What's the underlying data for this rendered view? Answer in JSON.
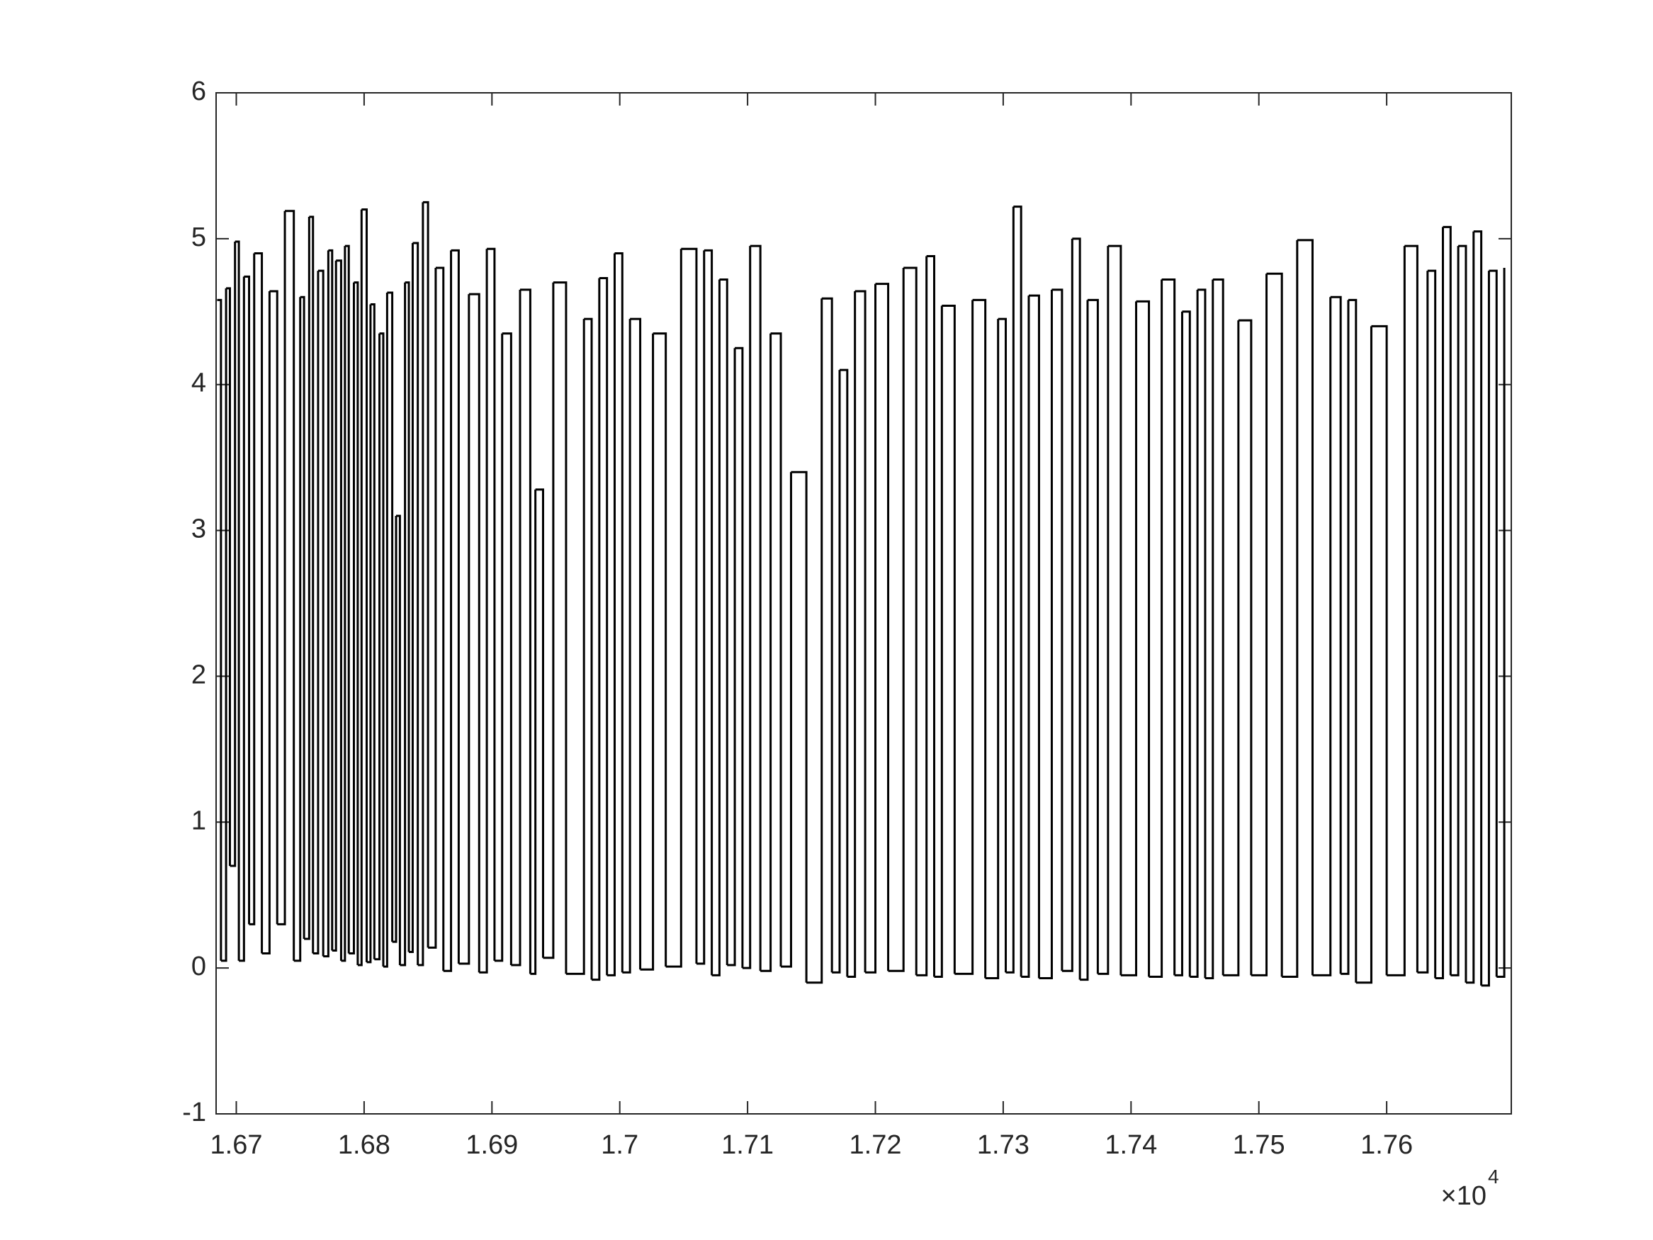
{
  "chart_data": {
    "type": "stairs",
    "color": "#000000",
    "x": [
      16685,
      16688,
      16692,
      16695,
      16699,
      16702,
      16706,
      16710,
      16714,
      16720,
      16726,
      16732,
      16738,
      16745,
      16750,
      16753,
      16757,
      16760,
      16764,
      16768,
      16772,
      16775,
      16778,
      16782,
      16785,
      16788,
      16792,
      16795,
      16798,
      16802,
      16805,
      16808,
      16812,
      16815,
      16818,
      16822,
      16825,
      16828,
      16832,
      16835,
      16838,
      16842,
      16846,
      16850,
      16856,
      16862,
      16868,
      16874,
      16882,
      16890,
      16896,
      16902,
      16908,
      16915,
      16922,
      16930,
      16934,
      16940,
      16948,
      16958,
      16972,
      16978,
      16984,
      16990,
      16996,
      17002,
      17008,
      17016,
      17026,
      17036,
      17048,
      17060,
      17066,
      17072,
      17078,
      17084,
      17090,
      17096,
      17102,
      17110,
      17118,
      17126,
      17134,
      17146,
      17158,
      17166,
      17172,
      17178,
      17184,
      17192,
      17200,
      17210,
      17222,
      17232,
      17240,
      17246,
      17252,
      17262,
      17276,
      17286,
      17296,
      17302,
      17308,
      17314,
      17320,
      17328,
      17338,
      17346,
      17354,
      17360,
      17366,
      17374,
      17382,
      17392,
      17404,
      17414,
      17424,
      17434,
      17440,
      17446,
      17452,
      17458,
      17464,
      17472,
      17484,
      17494,
      17506,
      17518,
      17530,
      17542,
      17556,
      17564,
      17570,
      17576,
      17588,
      17600,
      17614,
      17624,
      17632,
      17638,
      17644,
      17650,
      17656,
      17662,
      17668,
      17674,
      17680,
      17686,
      17692
    ],
    "values": [
      4.58,
      0.05,
      4.66,
      0.7,
      4.98,
      0.05,
      4.74,
      0.3,
      4.9,
      0.1,
      4.64,
      0.3,
      5.19,
      0.05,
      4.6,
      0.2,
      5.15,
      0.1,
      4.78,
      0.08,
      4.92,
      0.12,
      4.85,
      0.05,
      4.95,
      0.1,
      4.7,
      0.02,
      5.2,
      0.04,
      4.55,
      0.06,
      4.35,
      0.01,
      4.63,
      0.18,
      3.1,
      0.02,
      4.7,
      0.11,
      4.97,
      0.02,
      5.25,
      0.14,
      4.8,
      -0.02,
      4.92,
      0.03,
      4.62,
      -0.03,
      4.93,
      0.05,
      4.35,
      0.02,
      4.65,
      -0.04,
      3.28,
      0.07,
      4.7,
      -0.04,
      4.45,
      -0.08,
      4.73,
      -0.05,
      4.9,
      -0.03,
      4.45,
      -0.01,
      4.35,
      0.01,
      4.93,
      0.03,
      4.92,
      -0.05,
      4.72,
      0.02,
      4.25,
      0.0,
      4.95,
      -0.02,
      4.35,
      0.01,
      3.4,
      -0.1,
      4.59,
      -0.03,
      4.1,
      -0.06,
      4.64,
      -0.03,
      4.69,
      -0.02,
      4.8,
      -0.05,
      4.88,
      -0.06,
      4.54,
      -0.04,
      4.58,
      -0.07,
      4.45,
      -0.03,
      5.22,
      -0.06,
      4.61,
      -0.07,
      4.65,
      -0.02,
      5.0,
      -0.08,
      4.58,
      -0.04,
      4.95,
      -0.05,
      4.57,
      -0.06,
      4.72,
      -0.05,
      4.5,
      -0.06,
      4.65,
      -0.07,
      4.72,
      -0.05,
      4.44,
      -0.05,
      4.76,
      -0.06,
      4.99,
      -0.05,
      4.6,
      -0.04,
      4.58,
      -0.1,
      4.4,
      -0.05,
      4.95,
      -0.03,
      4.78,
      -0.07,
      5.08,
      -0.05,
      4.95,
      -0.1,
      5.05,
      -0.12,
      4.78,
      -0.06,
      4.8
    ],
    "xlim": [
      16684.2,
      17697.5
    ],
    "xticks": [
      {
        "value": 16700,
        "label": "1.67"
      },
      {
        "value": 16800,
        "label": "1.68"
      },
      {
        "value": 16900,
        "label": "1.69"
      },
      {
        "value": 17000,
        "label": "1.7"
      },
      {
        "value": 17100,
        "label": "1.71"
      },
      {
        "value": 17200,
        "label": "1.72"
      },
      {
        "value": 17300,
        "label": "1.73"
      },
      {
        "value": 17400,
        "label": "1.74"
      },
      {
        "value": 17500,
        "label": "1.75"
      },
      {
        "value": 17600,
        "label": "1.76"
      }
    ],
    "x_exponent": {
      "base": "×10",
      "power": "4"
    },
    "ylim": [
      -1,
      6
    ],
    "yticks": [
      -1,
      0,
      1,
      2,
      3,
      4,
      5,
      6
    ]
  }
}
